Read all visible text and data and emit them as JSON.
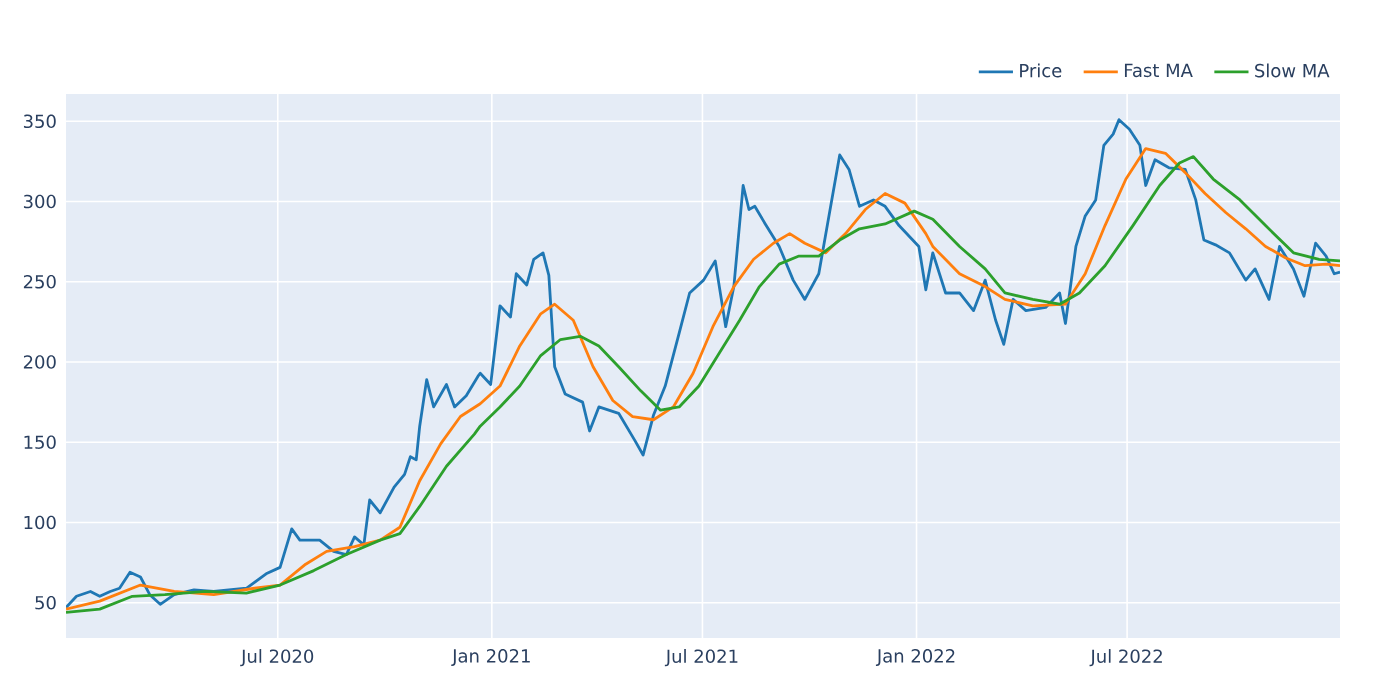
{
  "chart_data": {
    "type": "line",
    "legend": "top right",
    "grid": true,
    "xlim": [
      "2020-01-01",
      "2022-12-31"
    ],
    "xticks": [
      {
        "value": "2020-07-01",
        "label": "Jul 2020"
      },
      {
        "value": "2021-01-01",
        "label": "Jan 2021"
      },
      {
        "value": "2021-07-01",
        "label": "Jul 2021"
      },
      {
        "value": "2022-01-01",
        "label": "Jan 2022"
      },
      {
        "value": "2022-07-01",
        "label": "Jul 2022"
      }
    ],
    "ylim": [
      28,
      367
    ],
    "yticks": [
      50,
      100,
      150,
      200,
      250,
      300,
      350
    ],
    "series": [
      {
        "name": "Price",
        "color": "#1f77b4",
        "x": [
          "2020-01-01",
          "2020-01-10",
          "2020-01-22",
          "2020-01-30",
          "2020-02-08",
          "2020-02-16",
          "2020-02-25",
          "2020-03-05",
          "2020-03-13",
          "2020-03-22",
          "2020-04-03",
          "2020-04-20",
          "2020-05-07",
          "2020-05-24",
          "2020-06-04",
          "2020-06-21",
          "2020-07-03",
          "2020-07-13",
          "2020-07-20",
          "2020-08-06",
          "2020-08-18",
          "2020-08-29",
          "2020-09-05",
          "2020-09-13",
          "2020-09-18",
          "2020-09-27",
          "2020-10-09",
          "2020-10-18",
          "2020-10-23",
          "2020-10-28",
          "2020-10-31",
          "2020-11-06",
          "2020-11-12",
          "2020-11-23",
          "2020-11-30",
          "2020-12-10",
          "2020-12-20",
          "2020-12-22",
          "2020-12-31",
          "2021-01-08",
          "2021-01-17",
          "2021-01-22",
          "2021-01-31",
          "2021-02-06",
          "2021-02-14",
          "2021-02-19",
          "2021-02-24",
          "2021-03-05",
          "2021-03-20",
          "2021-03-26",
          "2021-04-03",
          "2021-04-20",
          "2021-05-04",
          "2021-05-11",
          "2021-05-20",
          "2021-05-30",
          "2021-06-11",
          "2021-06-20",
          "2021-07-02",
          "2021-07-12",
          "2021-07-21",
          "2021-07-28",
          "2021-08-05",
          "2021-08-10",
          "2021-08-15",
          "2021-08-24",
          "2021-09-05",
          "2021-09-17",
          "2021-09-27",
          "2021-10-09",
          "2021-10-18",
          "2021-10-27",
          "2021-11-04",
          "2021-11-13",
          "2021-11-25",
          "2021-12-05",
          "2021-12-17",
          "2022-01-03",
          "2022-01-09",
          "2022-01-15",
          "2022-01-26",
          "2022-02-07",
          "2022-02-19",
          "2022-03-01",
          "2022-03-10",
          "2022-03-17",
          "2022-03-25",
          "2022-04-05",
          "2022-04-22",
          "2022-05-04",
          "2022-05-09",
          "2022-05-18",
          "2022-05-26",
          "2022-06-04",
          "2022-06-11",
          "2022-06-19",
          "2022-06-24",
          "2022-07-03",
          "2022-07-12",
          "2022-07-17",
          "2022-07-25",
          "2022-08-06",
          "2022-08-20",
          "2022-08-29",
          "2022-09-05",
          "2022-09-15",
          "2022-09-27",
          "2022-10-11",
          "2022-10-19",
          "2022-10-31",
          "2022-11-09",
          "2022-11-21",
          "2022-11-30",
          "2022-12-10",
          "2022-12-19",
          "2022-12-26",
          "2022-12-31"
        ],
        "values": [
          47,
          54,
          57,
          54,
          57,
          59,
          69,
          66,
          55,
          49,
          55,
          58,
          57,
          null,
          59,
          68,
          72,
          96,
          89,
          89,
          82,
          80,
          91,
          86,
          114,
          106,
          122,
          130,
          141,
          139,
          160,
          189,
          172,
          186,
          172,
          179,
          191,
          193,
          186,
          235,
          228,
          255,
          248,
          264,
          268,
          254,
          197,
          180,
          175,
          157,
          172,
          168,
          151,
          142,
          167,
          185,
          218,
          243,
          251,
          263,
          222,
          247,
          310,
          295,
          297,
          286,
          272,
          251,
          239,
          255,
          292,
          329,
          320,
          297,
          301,
          297,
          285,
          272,
          245,
          268,
          243,
          243,
          232,
          251,
          226,
          211,
          239,
          232,
          234,
          243,
          224,
          272,
          291,
          301,
          335,
          342,
          351,
          345,
          335,
          310,
          326,
          321,
          320,
          301,
          276,
          273,
          268,
          251,
          258,
          239,
          272,
          258,
          241,
          274,
          266,
          255,
          256
        ]
      },
      {
        "name": "Fast MA",
        "color": "#ff7f0e",
        "x": [
          "2020-01-01",
          "2020-01-30",
          "2020-03-05",
          "2020-04-03",
          "2020-05-07",
          "2020-06-11",
          "2020-07-03",
          "2020-07-25",
          "2020-08-12",
          "2020-09-05",
          "2020-09-27",
          "2020-10-14",
          "2020-10-31",
          "2020-11-18",
          "2020-12-05",
          "2020-12-22",
          "2021-01-08",
          "2021-01-25",
          "2021-02-12",
          "2021-02-24",
          "2021-03-12",
          "2021-03-29",
          "2021-04-15",
          "2021-05-02",
          "2021-05-20",
          "2021-06-06",
          "2021-06-23",
          "2021-07-10",
          "2021-07-28",
          "2021-08-14",
          "2021-08-31",
          "2021-09-14",
          "2021-09-27",
          "2021-10-15",
          "2021-11-01",
          "2021-11-18",
          "2021-12-05",
          "2021-12-22",
          "2022-01-09",
          "2022-01-15",
          "2022-02-07",
          "2022-03-01",
          "2022-03-18",
          "2022-04-11",
          "2022-05-09",
          "2022-05-26",
          "2022-06-12",
          "2022-06-30",
          "2022-07-17",
          "2022-08-03",
          "2022-08-20",
          "2022-09-06",
          "2022-09-24",
          "2022-10-11",
          "2022-10-28",
          "2022-11-14",
          "2022-12-01",
          "2022-12-19",
          "2022-12-31"
        ],
        "values": [
          46,
          51,
          61,
          57,
          55,
          59,
          61,
          74,
          82,
          85,
          89,
          97,
          126,
          149,
          166,
          174,
          185,
          210,
          230,
          236,
          226,
          197,
          176,
          166,
          164,
          172,
          193,
          222,
          247,
          264,
          274,
          280,
          274,
          268,
          280,
          295,
          305,
          299,
          280,
          272,
          255,
          247,
          239,
          235,
          236,
          255,
          285,
          314,
          333,
          330,
          318,
          305,
          293,
          283,
          272,
          265,
          260,
          261,
          260
        ]
      },
      {
        "name": "Slow MA",
        "color": "#2ca02c",
        "x": [
          "2020-01-01",
          "2020-01-30",
          "2020-02-27",
          "2020-03-26",
          "2020-04-30",
          "2020-06-04",
          "2020-07-03",
          "2020-08-01",
          "2020-08-29",
          "2020-09-27",
          "2020-10-14",
          "2020-10-31",
          "2020-11-23",
          "2020-12-17",
          "2020-12-22",
          "2021-01-08",
          "2021-01-25",
          "2021-02-12",
          "2021-03-01",
          "2021-03-18",
          "2021-04-03",
          "2021-04-20",
          "2021-05-09",
          "2021-05-26",
          "2021-06-11",
          "2021-06-28",
          "2021-07-15",
          "2021-08-02",
          "2021-08-19",
          "2021-09-05",
          "2021-09-22",
          "2021-10-09",
          "2021-10-27",
          "2021-11-13",
          "2021-12-05",
          "2021-12-30",
          "2022-01-15",
          "2022-02-07",
          "2022-03-01",
          "2022-03-18",
          "2022-04-11",
          "2022-05-04",
          "2022-05-21",
          "2022-06-12",
          "2022-07-06",
          "2022-07-29",
          "2022-08-15",
          "2022-08-27",
          "2022-09-13",
          "2022-10-06",
          "2022-10-28",
          "2022-11-21",
          "2022-12-13",
          "2022-12-31"
        ],
        "values": [
          44,
          46,
          54,
          55,
          57,
          56,
          61,
          70,
          80,
          89,
          93,
          110,
          135,
          155,
          160,
          172,
          185,
          204,
          214,
          216,
          210,
          197,
          182,
          170,
          172,
          185,
          205,
          226,
          247,
          261,
          266,
          266,
          276,
          283,
          286,
          294,
          289,
          272,
          258,
          243,
          239,
          236,
          243,
          260,
          285,
          310,
          324,
          328,
          314,
          301,
          285,
          268,
          264,
          263
        ]
      }
    ]
  }
}
